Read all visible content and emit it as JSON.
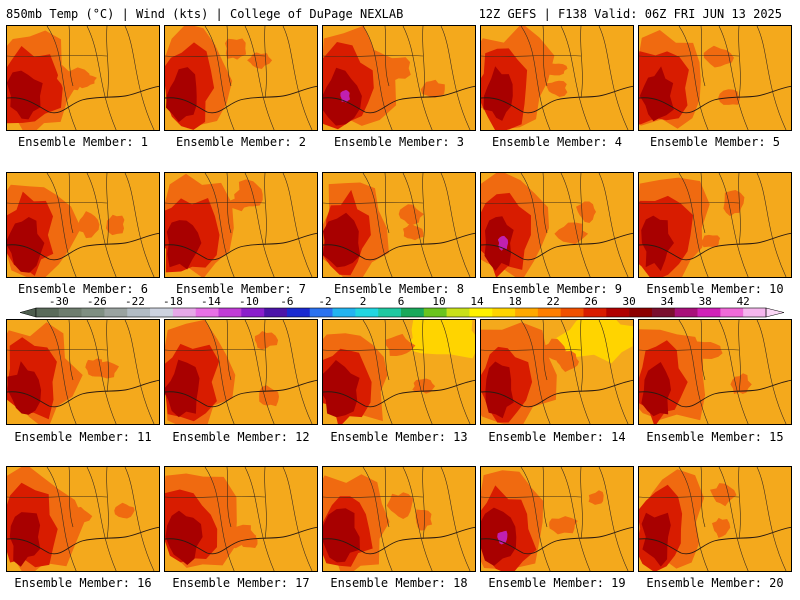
{
  "header": {
    "left_title": "850mb Temp (°C) | Wind (kts) | College of DuPage NEXLAB",
    "right_title": "12Z GEFS | F138 Valid: 06Z FRI JUN 13 2025"
  },
  "members": [
    {
      "label": "Ensemble Member: 1"
    },
    {
      "label": "Ensemble Member: 2"
    },
    {
      "label": "Ensemble Member: 3"
    },
    {
      "label": "Ensemble Member: 4"
    },
    {
      "label": "Ensemble Member: 5"
    },
    {
      "label": "Ensemble Member: 6"
    },
    {
      "label": "Ensemble Member: 7"
    },
    {
      "label": "Ensemble Member: 8"
    },
    {
      "label": "Ensemble Member: 9"
    },
    {
      "label": "Ensemble Member: 10"
    },
    {
      "label": "Ensemble Member: 11"
    },
    {
      "label": "Ensemble Member: 12"
    },
    {
      "label": "Ensemble Member: 13"
    },
    {
      "label": "Ensemble Member: 14"
    },
    {
      "label": "Ensemble Member: 15"
    },
    {
      "label": "Ensemble Member: 16"
    },
    {
      "label": "Ensemble Member: 17"
    },
    {
      "label": "Ensemble Member: 18"
    },
    {
      "label": "Ensemble Member: 19"
    },
    {
      "label": "Ensemble Member: 20"
    }
  ],
  "colorbar": {
    "tick_labels": [
      "-30",
      "-26",
      "-22",
      "-18",
      "-14",
      "-10",
      "-6",
      "-2",
      "2",
      "6",
      "10",
      "14",
      "18",
      "22",
      "26",
      "30",
      "34",
      "38",
      "42"
    ],
    "colors": [
      "#5a6b5a",
      "#6e7d6e",
      "#7f8f82",
      "#9aa3a0",
      "#b2bcc4",
      "#cdd3e0",
      "#e6a8e8",
      "#e870e6",
      "#c03cd6",
      "#8a1ecc",
      "#4b14a8",
      "#1a2ad0",
      "#2b72f0",
      "#23b4f0",
      "#21d6e0",
      "#1fc8a0",
      "#1aa85a",
      "#6ac41e",
      "#c8e01a",
      "#fff200",
      "#ffd400",
      "#ffa800",
      "#ff7e00",
      "#f05000",
      "#d81c00",
      "#b00000",
      "#8c0000",
      "#7a0f2e",
      "#a8107a",
      "#d020b8",
      "#f06ad8",
      "#f6b6ee"
    ],
    "low_end_color": "#4e5e4e",
    "high_end_color": "#fbd6f6"
  },
  "colors": {
    "base_warm": "#f4a91c",
    "warm_mid": "#f06a10",
    "hot": "#d81c00",
    "very_hot": "#a80000",
    "extreme": "#7a1030",
    "magenta": "#c020b0",
    "yellow": "#ffd400"
  }
}
